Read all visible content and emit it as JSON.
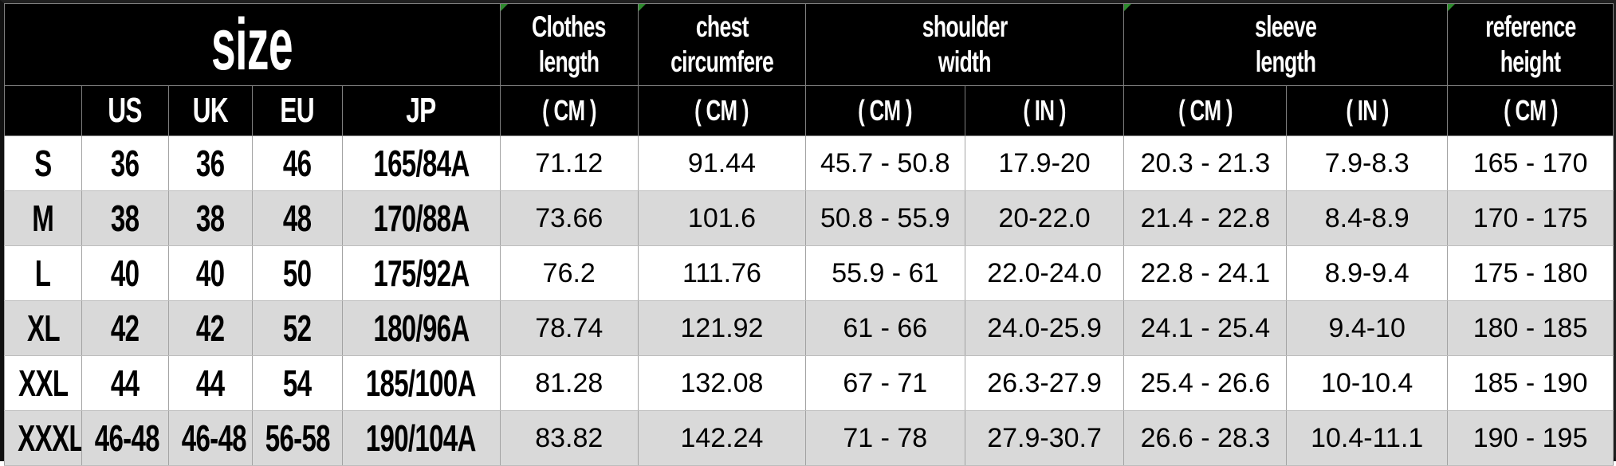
{
  "colors": {
    "header_bg": "#000000",
    "header_text": "#ffffff",
    "row_white": "#ffffff",
    "row_gray": "#d9d9d9",
    "body_text": "#000000",
    "grid_line": "#a3a3a3",
    "corner_indicator_green": "#2e8b2e"
  },
  "chart_data": {
    "type": "table",
    "title": "size",
    "size_subheaders": [
      "US",
      "UK",
      "EU",
      "JP"
    ],
    "measure_groups": [
      {
        "label_line1": "Clothes",
        "label_line2": "length",
        "units": [
          "( CM )"
        ]
      },
      {
        "label_line1": "chest",
        "label_line2": "circumfere",
        "units": [
          "( CM )"
        ]
      },
      {
        "label_line1": "shoulder",
        "label_line2": "width",
        "units": [
          "( CM )",
          "( IN )"
        ]
      },
      {
        "label_line1": "sleeve",
        "label_line2": "length",
        "units": [
          "( CM )",
          "( IN )"
        ]
      },
      {
        "label_line1": "reference",
        "label_line2": "height",
        "units": [
          "( CM )"
        ]
      }
    ],
    "rows": [
      {
        "size": "S",
        "us": "36",
        "uk": "36",
        "eu": "46",
        "jp": "165/84A",
        "clothes_cm": "71.12",
        "chest_cm": "91.44",
        "shoulder_cm": "45.7 - 50.8",
        "shoulder_in": "17.9-20",
        "sleeve_cm": "20.3 - 21.3",
        "sleeve_in": "7.9-8.3",
        "height_cm": "165 - 170"
      },
      {
        "size": "M",
        "us": "38",
        "uk": "38",
        "eu": "48",
        "jp": "170/88A",
        "clothes_cm": "73.66",
        "chest_cm": "101.6",
        "shoulder_cm": "50.8 - 55.9",
        "shoulder_in": "20-22.0",
        "sleeve_cm": "21.4 - 22.8",
        "sleeve_in": "8.4-8.9",
        "height_cm": "170 - 175"
      },
      {
        "size": "L",
        "us": "40",
        "uk": "40",
        "eu": "50",
        "jp": "175/92A",
        "clothes_cm": "76.2",
        "chest_cm": "111.76",
        "shoulder_cm": "55.9 - 61",
        "shoulder_in": "22.0-24.0",
        "sleeve_cm": "22.8 - 24.1",
        "sleeve_in": "8.9-9.4",
        "height_cm": "175 - 180"
      },
      {
        "size": "XL",
        "us": "42",
        "uk": "42",
        "eu": "52",
        "jp": "180/96A",
        "clothes_cm": "78.74",
        "chest_cm": "121.92",
        "shoulder_cm": "61 - 66",
        "shoulder_in": "24.0-25.9",
        "sleeve_cm": "24.1 - 25.4",
        "sleeve_in": "9.4-10",
        "height_cm": "180 - 185"
      },
      {
        "size": "XXL",
        "us": "44",
        "uk": "44",
        "eu": "54",
        "jp": "185/100A",
        "clothes_cm": "81.28",
        "chest_cm": "132.08",
        "shoulder_cm": "67 - 71",
        "shoulder_in": "26.3-27.9",
        "sleeve_cm": "25.4 - 26.6",
        "sleeve_in": "10-10.4",
        "height_cm": "185 - 190"
      },
      {
        "size": "XXXL",
        "us": "46-48",
        "uk": "46-48",
        "eu": "56-58",
        "jp": "190/104A",
        "clothes_cm": "83.82",
        "chest_cm": "142.24",
        "shoulder_cm": "71 - 78",
        "shoulder_in": "27.9-30.7",
        "sleeve_cm": "26.6 - 28.3",
        "sleeve_in": "10.4-11.1",
        "height_cm": "190 - 195"
      }
    ]
  }
}
